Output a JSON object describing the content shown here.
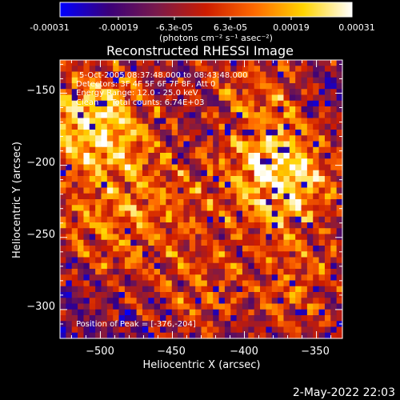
{
  "colorbar": {
    "ticks": [
      "-0.00031",
      "-0.00019",
      "-6.3e-05",
      "6.3e-05",
      "0.00019",
      "0.00031"
    ],
    "unit_label": "(photons cm⁻² s⁻¹ asec⁻²)",
    "range": [
      -0.00031,
      0.00031
    ],
    "colors": [
      "#0000ff",
      "#3a007a",
      "#7a1a4a",
      "#cc1c00",
      "#ff6a00",
      "#ffd400",
      "#ffffff"
    ]
  },
  "chart_data": {
    "type": "heatmap",
    "title": "Reconstructed RHESSI Image",
    "xlabel": "Heliocentric X (arcsec)",
    "ylabel": "Heliocentric Y (arcsec)",
    "xlim": [
      -528,
      -332
    ],
    "ylim": [
      -320,
      -127
    ],
    "xticks": [
      -500,
      -450,
      -400,
      -350
    ],
    "yticks": [
      -150,
      -200,
      -250,
      -300
    ],
    "xtick_labels": [
      "−500",
      "−450",
      "−400",
      "−350"
    ],
    "ytick_labels": [
      "−150",
      "−200",
      "−250",
      "−300"
    ],
    "annotations": [
      "5-Oct-2005 08:37:48.000 to 08:43:48.000",
      "Detectors: 3F 4F 5F 6F 7F 8F, Att 0",
      "Energy Range: 12.0 - 25.0 keV",
      "Clean     Total counts: 6.74E+03"
    ],
    "peak_label": "Position of Peak = [-376,-204]",
    "peak": [
      -376,
      -204
    ],
    "grid": false,
    "sources": [
      {
        "x": -505,
        "y": -170,
        "amp": 1.0
      },
      {
        "x": -375,
        "y": -205,
        "amp": 1.05
      },
      {
        "x": -460,
        "y": -225,
        "amp": 0.45
      },
      {
        "x": -505,
        "y": -250,
        "amp": 0.4
      },
      {
        "x": -430,
        "y": -290,
        "amp": 0.4
      },
      {
        "x": -360,
        "y": -285,
        "amp": 0.45
      },
      {
        "x": -395,
        "y": -140,
        "amp": 0.45
      }
    ]
  },
  "timestamp": "2-May-2022 22:03"
}
